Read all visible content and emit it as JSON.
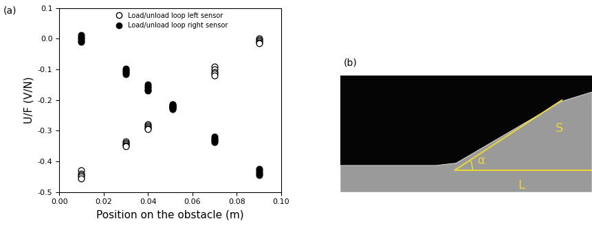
{
  "chart_data": {
    "type": "scatter",
    "x_label": "Position on the obstacle (m)",
    "y_label": "U/F (V/N)",
    "series": [
      {
        "name": "Load/unload loop left sensor",
        "color": "black",
        "marker": "circle_open",
        "x": [
          0.01,
          0.01,
          0.01,
          0.01,
          0.01,
          0.03,
          0.03,
          0.03,
          0.03,
          0.03,
          0.04,
          0.04,
          0.04,
          0.04,
          0.04,
          0.051,
          0.051,
          0.051,
          0.051,
          0.051,
          0.07,
          0.07,
          0.07,
          0.07,
          0.07,
          0.09,
          0.09,
          0.09,
          0.09,
          0.09
        ],
        "values": [
          -0.43,
          -0.44,
          -0.445,
          -0.45,
          -0.455,
          -0.335,
          -0.34,
          -0.345,
          -0.348,
          -0.35,
          -0.278,
          -0.283,
          -0.288,
          -0.292,
          -0.295,
          -0.215,
          -0.218,
          -0.221,
          -0.224,
          -0.227,
          -0.09,
          -0.1,
          -0.108,
          -0.114,
          -0.12,
          0.0,
          -0.004,
          -0.008,
          -0.012,
          -0.015
        ]
      },
      {
        "name": "Load/unload loop right sensor",
        "color": "black",
        "marker": "circle_filled",
        "x": [
          0.01,
          0.01,
          0.01,
          0.01,
          0.01,
          0.03,
          0.03,
          0.03,
          0.03,
          0.03,
          0.04,
          0.04,
          0.04,
          0.04,
          0.04,
          0.051,
          0.051,
          0.051,
          0.051,
          0.051,
          0.07,
          0.07,
          0.07,
          0.07,
          0.07,
          0.09,
          0.09,
          0.09,
          0.09,
          0.09
        ],
        "values": [
          0.012,
          0.006,
          0.0,
          -0.005,
          -0.01,
          -0.097,
          -0.102,
          -0.107,
          -0.111,
          -0.115,
          -0.15,
          -0.156,
          -0.161,
          -0.166,
          -0.17,
          -0.214,
          -0.218,
          -0.222,
          -0.226,
          -0.23,
          -0.32,
          -0.325,
          -0.329,
          -0.333,
          -0.337,
          -0.425,
          -0.43,
          -0.435,
          -0.44,
          -0.445
        ]
      }
    ],
    "xlim": [
      0.0,
      0.1
    ],
    "xticks": [
      {
        "value": 0.0,
        "label": "0.00"
      },
      {
        "value": 0.02,
        "label": "0.02"
      },
      {
        "value": 0.04,
        "label": "0.04"
      },
      {
        "value": 0.06,
        "label": "0.06"
      },
      {
        "value": 0.08,
        "label": "0.08"
      },
      {
        "value": 0.1,
        "label": "0.10"
      }
    ],
    "ylim": [
      -0.5,
      0.1
    ],
    "yticks": [
      -0.5,
      -0.4,
      -0.3,
      -0.2,
      -0.1,
      0.0,
      0.1
    ],
    "legend": "upper center",
    "grid": false
  },
  "panel_labels": [
    "(a)",
    "(b)"
  ],
  "photo": {
    "annotations": {
      "angle": "α",
      "slope": "S",
      "base": "L"
    }
  }
}
